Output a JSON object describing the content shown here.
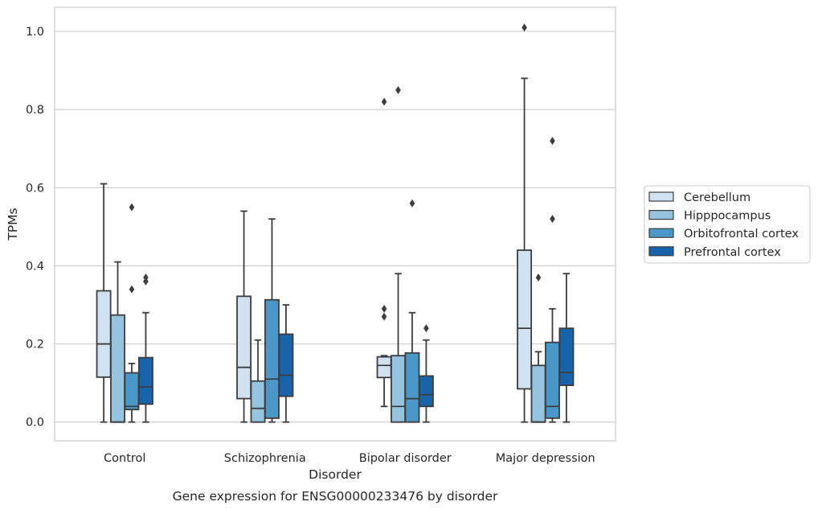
{
  "chart_data": {
    "type": "box",
    "title": "",
    "caption": "Gene expression for ENSG00000233476 by disorder",
    "xlabel": "Disorder",
    "ylabel": "TPMs",
    "ylim": [
      -0.048,
      1.062
    ],
    "yticks": [
      "0.0",
      "0.2",
      "0.4",
      "0.6",
      "0.8",
      "1.0"
    ],
    "ytick_values": [
      0.0,
      0.2,
      0.4,
      0.6,
      0.8,
      1.0
    ],
    "categories": [
      "Control",
      "Schizophrenia",
      "Bipolar disorder",
      "Major depression"
    ],
    "grid": "horizontal",
    "legend_position": "right",
    "series": [
      {
        "name": "Cerebellum",
        "color": "#d0e1f2",
        "boxes": [
          {
            "whislo": 0.0,
            "q1": 0.115,
            "med": 0.2,
            "q3": 0.336,
            "whishi": 0.61,
            "fliers": []
          },
          {
            "whislo": 0.0,
            "q1": 0.06,
            "med": 0.14,
            "q3": 0.322,
            "whishi": 0.54,
            "fliers": []
          },
          {
            "whislo": 0.04,
            "q1": 0.114,
            "med": 0.145,
            "q3": 0.167,
            "whishi": 0.17,
            "fliers": [
              0.27,
              0.29,
              0.82
            ]
          },
          {
            "whislo": 0.0,
            "q1": 0.085,
            "med": 0.24,
            "q3": 0.44,
            "whishi": 0.88,
            "fliers": [
              1.01
            ]
          }
        ]
      },
      {
        "name": "Hipppocampus",
        "color": "#94c4df",
        "boxes": [
          {
            "whislo": 0.0,
            "q1": 0.0,
            "med": 0.0,
            "q3": 0.274,
            "whishi": 0.41,
            "fliers": []
          },
          {
            "whislo": 0.0,
            "q1": 0.0,
            "med": 0.035,
            "q3": 0.105,
            "whishi": 0.21,
            "fliers": []
          },
          {
            "whislo": 0.0,
            "q1": 0.0,
            "med": 0.04,
            "q3": 0.17,
            "whishi": 0.38,
            "fliers": [
              0.85
            ]
          },
          {
            "whislo": 0.0,
            "q1": 0.0,
            "med": 0.0,
            "q3": 0.145,
            "whishi": 0.18,
            "fliers": [
              0.37
            ]
          }
        ]
      },
      {
        "name": "Orbitofrontal cortex",
        "color": "#4a98c9",
        "boxes": [
          {
            "whislo": 0.0,
            "q1": 0.032,
            "med": 0.04,
            "q3": 0.126,
            "whishi": 0.15,
            "fliers": [
              0.34,
              0.55
            ]
          },
          {
            "whislo": 0.0,
            "q1": 0.01,
            "med": 0.11,
            "q3": 0.313,
            "whishi": 0.52,
            "fliers": []
          },
          {
            "whislo": 0.0,
            "q1": 0.0,
            "med": 0.06,
            "q3": 0.177,
            "whishi": 0.28,
            "fliers": [
              0.56
            ]
          },
          {
            "whislo": 0.0,
            "q1": 0.01,
            "med": 0.04,
            "q3": 0.204,
            "whishi": 0.29,
            "fliers": [
              0.52,
              0.72
            ]
          }
        ]
      },
      {
        "name": "Prefrontal cortex",
        "color": "#1764ab",
        "boxes": [
          {
            "whislo": 0.0,
            "q1": 0.046,
            "med": 0.09,
            "q3": 0.165,
            "whishi": 0.28,
            "fliers": [
              0.36,
              0.37
            ]
          },
          {
            "whislo": 0.0,
            "q1": 0.066,
            "med": 0.12,
            "q3": 0.225,
            "whishi": 0.3,
            "fliers": []
          },
          {
            "whislo": 0.0,
            "q1": 0.04,
            "med": 0.07,
            "q3": 0.118,
            "whishi": 0.21,
            "fliers": [
              0.24
            ]
          },
          {
            "whislo": 0.0,
            "q1": 0.094,
            "med": 0.127,
            "q3": 0.24,
            "whishi": 0.38,
            "fliers": []
          }
        ]
      }
    ]
  }
}
